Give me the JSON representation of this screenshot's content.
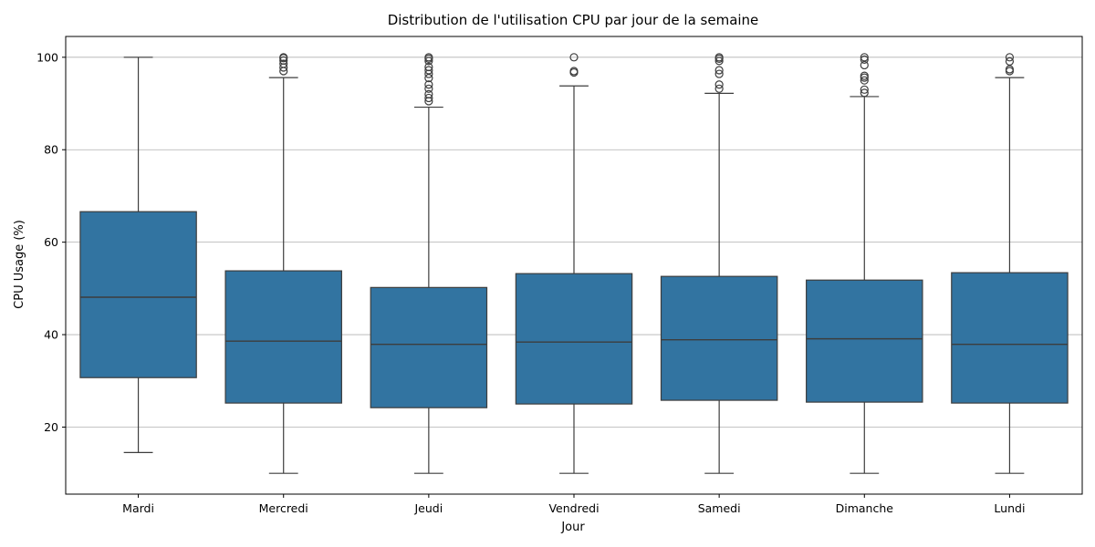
{
  "chart_data": {
    "type": "box",
    "title": "Distribution de l'utilisation CPU par jour de la semaine",
    "xlabel": "Jour",
    "ylabel": "CPU Usage (%)",
    "ylim": [
      5.5,
      104.5
    ],
    "yticks": [
      20,
      40,
      60,
      80,
      100
    ],
    "grid": "y",
    "box_color": "#3274a1",
    "line_color": "#3d3d3d",
    "categories": [
      "Mardi",
      "Mercredi",
      "Jeudi",
      "Vendredi",
      "Samedi",
      "Dimanche",
      "Lundi"
    ],
    "boxes": [
      {
        "q1": 30.7,
        "median": 48.1,
        "q3": 66.6,
        "whisker_low": 14.5,
        "whisker_high": 100.0,
        "outliers": []
      },
      {
        "q1": 25.2,
        "median": 38.6,
        "q3": 53.8,
        "whisker_low": 10.0,
        "whisker_high": 95.6,
        "outliers": [
          97.0,
          97.8,
          98.6,
          99.3,
          99.8,
          100.0
        ]
      },
      {
        "q1": 24.2,
        "median": 37.9,
        "q3": 50.2,
        "whisker_low": 10.0,
        "whisker_high": 89.2,
        "outliers": [
          90.5,
          91.2,
          92.0,
          93.2,
          94.1,
          95.5,
          96.4,
          97.2,
          97.9,
          99.2,
          99.7,
          100.0
        ]
      },
      {
        "q1": 25.0,
        "median": 38.4,
        "q3": 53.2,
        "whisker_low": 10.0,
        "whisker_high": 93.8,
        "outliers": [
          96.7,
          97.0,
          100.0
        ]
      },
      {
        "q1": 25.8,
        "median": 38.9,
        "q3": 52.6,
        "whisker_low": 10.0,
        "whisker_high": 92.2,
        "outliers": [
          93.2,
          94.1,
          96.4,
          97.2,
          99.2,
          99.7,
          100.0
        ]
      },
      {
        "q1": 25.4,
        "median": 39.1,
        "q3": 51.8,
        "whisker_low": 10.0,
        "whisker_high": 91.5,
        "outliers": [
          92.3,
          93.0,
          95.0,
          95.6,
          96.0,
          98.3,
          99.5,
          100.0
        ]
      },
      {
        "q1": 25.2,
        "median": 37.9,
        "q3": 53.4,
        "whisker_low": 10.0,
        "whisker_high": 95.6,
        "outliers": [
          97.0,
          97.4,
          99.1,
          100.0
        ]
      }
    ]
  }
}
